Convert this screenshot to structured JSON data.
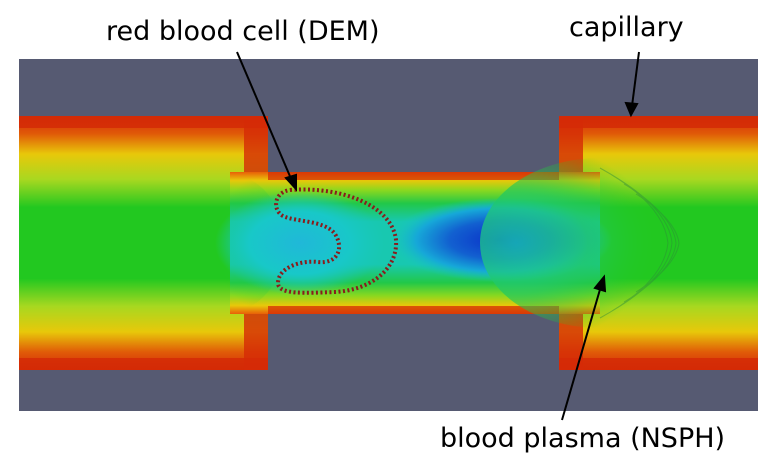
{
  "labels": {
    "red_blood_cell": "red blood cell (DEM)",
    "capillary": "capillary",
    "blood_plasma": "blood plasma (NSPH)"
  },
  "colors": {
    "background": "#565a72",
    "wall": "#d42a06",
    "high": "#e8d008",
    "mid": "#20c820",
    "low_mid": "#18c8c0",
    "low": "#0a2fc8",
    "cell_outline": "#8a1c1c"
  }
}
